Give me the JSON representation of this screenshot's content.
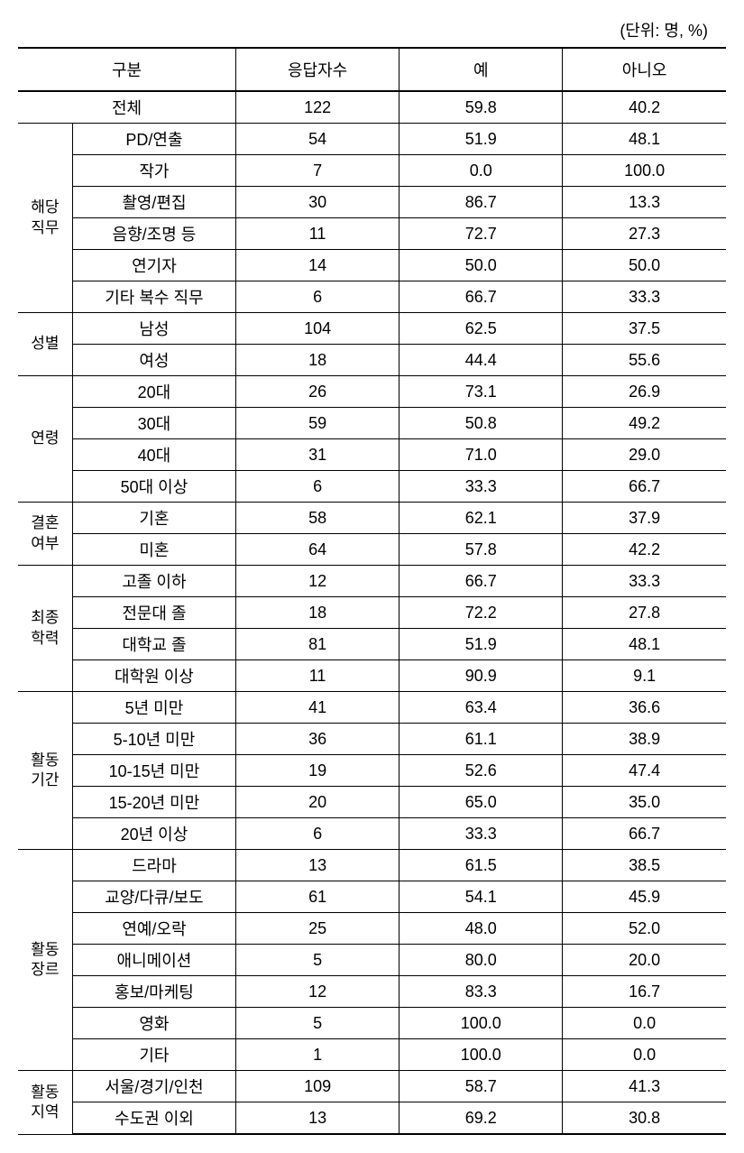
{
  "unit_label": "(단위: 명, %)",
  "headers": {
    "category": "구분",
    "respondents": "응답자수",
    "yes": "예",
    "no": "아니오"
  },
  "total": {
    "label": "전체",
    "respondents": "122",
    "yes": "59.8",
    "no": "40.2"
  },
  "groups": [
    {
      "label": "해당\n직무",
      "rows": [
        {
          "label": "PD/연출",
          "respondents": "54",
          "yes": "51.9",
          "no": "48.1"
        },
        {
          "label": "작가",
          "respondents": "7",
          "yes": "0.0",
          "no": "100.0"
        },
        {
          "label": "촬영/편집",
          "respondents": "30",
          "yes": "86.7",
          "no": "13.3"
        },
        {
          "label": "음향/조명 등",
          "respondents": "11",
          "yes": "72.7",
          "no": "27.3"
        },
        {
          "label": "연기자",
          "respondents": "14",
          "yes": "50.0",
          "no": "50.0"
        },
        {
          "label": "기타 복수 직무",
          "respondents": "6",
          "yes": "66.7",
          "no": "33.3"
        }
      ]
    },
    {
      "label": "성별",
      "rows": [
        {
          "label": "남성",
          "respondents": "104",
          "yes": "62.5",
          "no": "37.5"
        },
        {
          "label": "여성",
          "respondents": "18",
          "yes": "44.4",
          "no": "55.6"
        }
      ]
    },
    {
      "label": "연령",
      "rows": [
        {
          "label": "20대",
          "respondents": "26",
          "yes": "73.1",
          "no": "26.9"
        },
        {
          "label": "30대",
          "respondents": "59",
          "yes": "50.8",
          "no": "49.2"
        },
        {
          "label": "40대",
          "respondents": "31",
          "yes": "71.0",
          "no": "29.0"
        },
        {
          "label": "50대 이상",
          "respondents": "6",
          "yes": "33.3",
          "no": "66.7"
        }
      ]
    },
    {
      "label": "결혼\n여부",
      "rows": [
        {
          "label": "기혼",
          "respondents": "58",
          "yes": "62.1",
          "no": "37.9"
        },
        {
          "label": "미혼",
          "respondents": "64",
          "yes": "57.8",
          "no": "42.2"
        }
      ]
    },
    {
      "label": "최종\n학력",
      "rows": [
        {
          "label": "고졸 이하",
          "respondents": "12",
          "yes": "66.7",
          "no": "33.3"
        },
        {
          "label": "전문대 졸",
          "respondents": "18",
          "yes": "72.2",
          "no": "27.8"
        },
        {
          "label": "대학교 졸",
          "respondents": "81",
          "yes": "51.9",
          "no": "48.1"
        },
        {
          "label": "대학원 이상",
          "respondents": "11",
          "yes": "90.9",
          "no": "9.1"
        }
      ]
    },
    {
      "label": "활동\n기간",
      "rows": [
        {
          "label": "5년 미만",
          "respondents": "41",
          "yes": "63.4",
          "no": "36.6"
        },
        {
          "label": "5-10년 미만",
          "respondents": "36",
          "yes": "61.1",
          "no": "38.9"
        },
        {
          "label": "10-15년 미만",
          "respondents": "19",
          "yes": "52.6",
          "no": "47.4"
        },
        {
          "label": "15-20년 미만",
          "respondents": "20",
          "yes": "65.0",
          "no": "35.0"
        },
        {
          "label": "20년 이상",
          "respondents": "6",
          "yes": "33.3",
          "no": "66.7"
        }
      ]
    },
    {
      "label": "활동\n장르",
      "rows": [
        {
          "label": "드라마",
          "respondents": "13",
          "yes": "61.5",
          "no": "38.5"
        },
        {
          "label": "교양/다큐/보도",
          "respondents": "61",
          "yes": "54.1",
          "no": "45.9"
        },
        {
          "label": "연예/오락",
          "respondents": "25",
          "yes": "48.0",
          "no": "52.0"
        },
        {
          "label": "애니메이션",
          "respondents": "5",
          "yes": "80.0",
          "no": "20.0"
        },
        {
          "label": "홍보/마케팅",
          "respondents": "12",
          "yes": "83.3",
          "no": "16.7"
        },
        {
          "label": "영화",
          "respondents": "5",
          "yes": "100.0",
          "no": "0.0"
        },
        {
          "label": "기타",
          "respondents": "1",
          "yes": "100.0",
          "no": "0.0"
        }
      ]
    },
    {
      "label": "활동\n지역",
      "rows": [
        {
          "label": "서울/경기/인천",
          "respondents": "109",
          "yes": "58.7",
          "no": "41.3"
        },
        {
          "label": "수도권 이외",
          "respondents": "13",
          "yes": "69.2",
          "no": "30.8"
        }
      ]
    }
  ]
}
